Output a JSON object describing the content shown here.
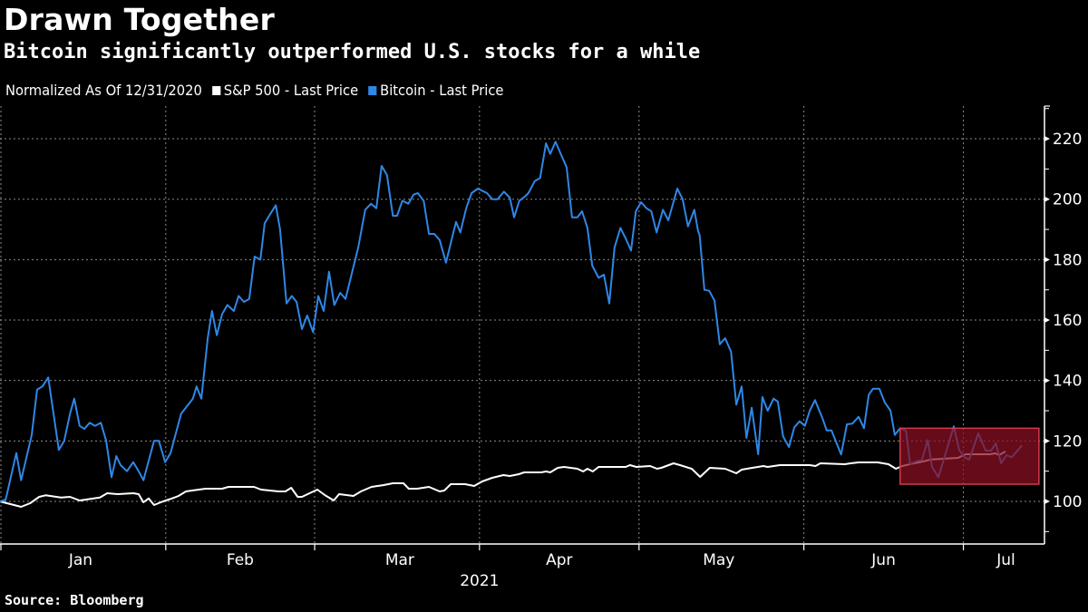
{
  "title": "Drawn Together",
  "subtitle": "Bitcoin significantly outperformed U.S. stocks for a while",
  "legend": {
    "note": "Normalized As Of 12/31/2020",
    "items": [
      {
        "label": "S&P 500 - Last Price",
        "color": "#ffffff"
      },
      {
        "label": "Bitcoin - Last Price",
        "color": "#2f87e6"
      }
    ]
  },
  "source": "Source: Bloomberg",
  "colors": {
    "background": "#000000",
    "sp500": "#ffffff",
    "bitcoin": "#2f87e6",
    "highlight_fill": "#8c0f22",
    "highlight_border": "#d33a4e",
    "grid": "#8a8a8a"
  },
  "chart_data": {
    "type": "line",
    "title": "Drawn Together",
    "subtitle": "Bitcoin significantly outperformed U.S. stocks for a while",
    "xlabel": "2021",
    "ylabel": "",
    "x_unit": "day of year 2021",
    "xlim": [
      0,
      196
    ],
    "ylim": [
      90,
      230
    ],
    "y_ticks": [
      100,
      120,
      140,
      160,
      180,
      200,
      220
    ],
    "y_minor_ticks": [
      90,
      110,
      130,
      150,
      170,
      190,
      210,
      230
    ],
    "x_tick_labels": [
      "Jan",
      "Feb",
      "Mar",
      "Apr",
      "May",
      "Jun",
      "Jul"
    ],
    "x_tick_label_days": [
      16,
      46,
      76,
      106,
      136,
      167,
      190
    ],
    "x_month_boundaries": [
      1,
      32,
      60,
      91,
      121,
      152,
      182
    ],
    "year_label": "2021",
    "grid": true,
    "y_axis_side": "right",
    "legend_position": "top-left",
    "highlight": {
      "x_from": 170.1,
      "x_to": 196.2,
      "y_from": 105.7,
      "y_to": 124.2
    },
    "series": [
      {
        "name": "S&P 500 - Last Price",
        "color": "#ffffff",
        "points": [
          [
            0.8,
            100
          ],
          [
            4.8,
            98.2
          ],
          [
            6.5,
            99.4
          ],
          [
            8.2,
            101.5
          ],
          [
            9.4,
            102
          ],
          [
            12.3,
            101.3
          ],
          [
            14,
            101.5
          ],
          [
            15.8,
            100.3
          ],
          [
            19.6,
            101.3
          ],
          [
            21,
            102.7
          ],
          [
            23,
            102.4
          ],
          [
            25.9,
            102.7
          ],
          [
            26.9,
            102.4
          ],
          [
            27.8,
            99.7
          ],
          [
            28.8,
            101
          ],
          [
            29.8,
            98.8
          ],
          [
            31.5,
            100
          ],
          [
            33.2,
            101
          ],
          [
            34.4,
            101.8
          ],
          [
            35.8,
            103.3
          ],
          [
            37,
            103.6
          ],
          [
            39.5,
            104.2
          ],
          [
            42.6,
            104.2
          ],
          [
            43.8,
            104.8
          ],
          [
            48.6,
            104.8
          ],
          [
            49.9,
            103.9
          ],
          [
            53.2,
            103.3
          ],
          [
            54.5,
            103.3
          ],
          [
            55.6,
            104.5
          ],
          [
            56.8,
            101.5
          ],
          [
            57.6,
            101.5
          ],
          [
            60.5,
            103.9
          ],
          [
            61.9,
            102.1
          ],
          [
            63.6,
            100.3
          ],
          [
            64.6,
            102.4
          ],
          [
            67.3,
            101.8
          ],
          [
            68.7,
            103.3
          ],
          [
            70.7,
            104.8
          ],
          [
            73,
            105.4
          ],
          [
            74.7,
            106
          ],
          [
            76.7,
            106
          ],
          [
            77.7,
            104.2
          ],
          [
            79.3,
            104.2
          ],
          [
            81.5,
            104.8
          ],
          [
            83.5,
            103.3
          ],
          [
            84.4,
            103.6
          ],
          [
            85.6,
            105.7
          ],
          [
            88.3,
            105.7
          ],
          [
            90,
            105.1
          ],
          [
            91.5,
            106.6
          ],
          [
            93.4,
            107.8
          ],
          [
            95.5,
            108.7
          ],
          [
            96.7,
            108.4
          ],
          [
            98.4,
            109
          ],
          [
            99.4,
            109.6
          ],
          [
            102.6,
            109.6
          ],
          [
            103.5,
            109.9
          ],
          [
            104.3,
            109.6
          ],
          [
            105.7,
            111.1
          ],
          [
            106.9,
            111.4
          ],
          [
            109.4,
            110.8
          ],
          [
            110.5,
            109.9
          ],
          [
            111.3,
            110.8
          ],
          [
            112.3,
            109.9
          ],
          [
            113.4,
            111.4
          ],
          [
            118.5,
            111.4
          ],
          [
            119.3,
            112
          ],
          [
            120.5,
            111.4
          ],
          [
            123.1,
            111.7
          ],
          [
            124.4,
            110.8
          ],
          [
            125.2,
            111.1
          ],
          [
            127.5,
            112.6
          ],
          [
            128.7,
            112
          ],
          [
            130.9,
            110.8
          ],
          [
            132.5,
            108.1
          ],
          [
            134.3,
            111.1
          ],
          [
            137.2,
            110.8
          ],
          [
            139.3,
            109.3
          ],
          [
            140.3,
            110.5
          ],
          [
            142.3,
            111.1
          ],
          [
            144.4,
            111.7
          ],
          [
            145.2,
            111.4
          ],
          [
            147.5,
            112
          ],
          [
            153.1,
            112
          ],
          [
            154.2,
            111.7
          ],
          [
            155.1,
            112.6
          ],
          [
            159.7,
            112.3
          ],
          [
            160.8,
            112.6
          ],
          [
            162.3,
            112.9
          ],
          [
            165.9,
            112.9
          ],
          [
            167.9,
            112.3
          ],
          [
            169.3,
            110.8
          ],
          [
            170.5,
            111.7
          ],
          [
            172.2,
            112.4
          ],
          [
            173.9,
            113
          ],
          [
            176,
            113.9
          ],
          [
            178.2,
            114.1
          ],
          [
            181,
            114.4
          ],
          [
            182.4,
            115.6
          ],
          [
            183.8,
            115.6
          ],
          [
            187,
            115.6
          ],
          [
            188,
            115.9
          ],
          [
            188.7,
            115.3
          ],
          [
            189.9,
            116.5
          ]
        ]
      },
      {
        "name": "Bitcoin - Last Price",
        "color": "#2f87e6",
        "points": [
          [
            0.8,
            100
          ],
          [
            1.9,
            100.6
          ],
          [
            3.9,
            116
          ],
          [
            4.8,
            107
          ],
          [
            6.8,
            122
          ],
          [
            7.8,
            137
          ],
          [
            8.8,
            138
          ],
          [
            9.9,
            141
          ],
          [
            11.9,
            117
          ],
          [
            12.9,
            120
          ],
          [
            14,
            129
          ],
          [
            14.8,
            134
          ],
          [
            15.8,
            125
          ],
          [
            16.7,
            124
          ],
          [
            17.7,
            126
          ],
          [
            18.7,
            125
          ],
          [
            19.8,
            126
          ],
          [
            20.8,
            120
          ],
          [
            21.8,
            108
          ],
          [
            22.7,
            115
          ],
          [
            23.5,
            112
          ],
          [
            24.7,
            110
          ],
          [
            25.9,
            113
          ],
          [
            26.9,
            110
          ],
          [
            27.8,
            107
          ],
          [
            29.8,
            120
          ],
          [
            30.7,
            120
          ],
          [
            31.9,
            113
          ],
          [
            32.9,
            116
          ],
          [
            34.9,
            129
          ],
          [
            37.1,
            134
          ],
          [
            37.8,
            138
          ],
          [
            38.7,
            134
          ],
          [
            39.9,
            154
          ],
          [
            40.7,
            163
          ],
          [
            41.6,
            155
          ],
          [
            42.6,
            162
          ],
          [
            43.6,
            165
          ],
          [
            44.8,
            163
          ],
          [
            45.7,
            168
          ],
          [
            46.7,
            166
          ],
          [
            47.7,
            167
          ],
          [
            48.7,
            181
          ],
          [
            49.8,
            180
          ],
          [
            50.6,
            192
          ],
          [
            51.6,
            195
          ],
          [
            52.7,
            198
          ],
          [
            53.5,
            190
          ],
          [
            54.7,
            165.5
          ],
          [
            55.7,
            168
          ],
          [
            56.6,
            166
          ],
          [
            57.6,
            157
          ],
          [
            58.6,
            161.5
          ],
          [
            59.7,
            156
          ],
          [
            60.7,
            168
          ],
          [
            61.7,
            163
          ],
          [
            62.7,
            176
          ],
          [
            63.7,
            165
          ],
          [
            64.8,
            169
          ],
          [
            65.8,
            167
          ],
          [
            67.2,
            177
          ],
          [
            68.2,
            184
          ],
          [
            69.5,
            196.5
          ],
          [
            70.6,
            198.5
          ],
          [
            71.6,
            197
          ],
          [
            72.6,
            211
          ],
          [
            73.6,
            208
          ],
          [
            74.7,
            194.5
          ],
          [
            75.5,
            194.5
          ],
          [
            76.5,
            199.5
          ],
          [
            77.6,
            198.5
          ],
          [
            78.6,
            201.5
          ],
          [
            79.4,
            202
          ],
          [
            80.5,
            199.5
          ],
          [
            81.5,
            188.5
          ],
          [
            82.5,
            188.5
          ],
          [
            83.5,
            186.5
          ],
          [
            84.7,
            179
          ],
          [
            85.6,
            185.5
          ],
          [
            86.6,
            192.5
          ],
          [
            87.4,
            189
          ],
          [
            88.5,
            197
          ],
          [
            89.5,
            202
          ],
          [
            90.7,
            203.5
          ],
          [
            92.4,
            202
          ],
          [
            93.4,
            200
          ],
          [
            94.4,
            200
          ],
          [
            95.6,
            202.5
          ],
          [
            96.7,
            200.5
          ],
          [
            97.5,
            194
          ],
          [
            98.5,
            199.5
          ],
          [
            99.6,
            201
          ],
          [
            100.2,
            202
          ],
          [
            101.4,
            206
          ],
          [
            102.4,
            207
          ],
          [
            103.5,
            218.5
          ],
          [
            104.3,
            215
          ],
          [
            105.3,
            219
          ],
          [
            106.4,
            214.5
          ],
          [
            107.4,
            210.5
          ],
          [
            108.4,
            194
          ],
          [
            109.4,
            194
          ],
          [
            110.3,
            196
          ],
          [
            111.3,
            190.5
          ],
          [
            112.2,
            178
          ],
          [
            113.4,
            174
          ],
          [
            114.4,
            175
          ],
          [
            115.4,
            165.5
          ],
          [
            116.4,
            184
          ],
          [
            117.5,
            190.5
          ],
          [
            118.5,
            187
          ],
          [
            119.5,
            183
          ],
          [
            120.4,
            196
          ],
          [
            121.4,
            199
          ],
          [
            122.4,
            197
          ],
          [
            123.3,
            196
          ],
          [
            124.3,
            189
          ],
          [
            125.5,
            196.5
          ],
          [
            126.5,
            193
          ],
          [
            128.2,
            203.5
          ],
          [
            129.2,
            200
          ],
          [
            130.2,
            191
          ],
          [
            131.4,
            196.5
          ],
          [
            132.1,
            189.5
          ],
          [
            132.4,
            188
          ],
          [
            133.3,
            170
          ],
          [
            134.2,
            169.7
          ],
          [
            135.2,
            166.4
          ],
          [
            136.2,
            152
          ],
          [
            137.2,
            154
          ],
          [
            138.3,
            149.5
          ],
          [
            139.3,
            132
          ],
          [
            140.3,
            138
          ],
          [
            141.2,
            121
          ],
          [
            142.2,
            131
          ],
          [
            143.4,
            115.6
          ],
          [
            144.2,
            134.5
          ],
          [
            145.2,
            130
          ],
          [
            146.3,
            134
          ],
          [
            147.1,
            133
          ],
          [
            148.1,
            121.5
          ],
          [
            149.2,
            118
          ],
          [
            150.2,
            124.5
          ],
          [
            151.2,
            126.5
          ],
          [
            152.2,
            125
          ],
          [
            153.1,
            130
          ],
          [
            154.1,
            133.5
          ],
          [
            155.5,
            127.5
          ],
          [
            156.3,
            123.5
          ],
          [
            157.2,
            123.5
          ],
          [
            159,
            115.5
          ],
          [
            160.1,
            125.5
          ],
          [
            161.1,
            125.7
          ],
          [
            162.3,
            128
          ],
          [
            163.3,
            124.2
          ],
          [
            164.2,
            135.3
          ],
          [
            165,
            137.3
          ],
          [
            166.2,
            137.3
          ],
          [
            167.2,
            132.8
          ],
          [
            168.3,
            130
          ],
          [
            169.1,
            122
          ],
          [
            170.1,
            124.2
          ],
          [
            171.2,
            123.4
          ],
          [
            172,
            112.4
          ],
          [
            173.2,
            113.3
          ],
          [
            174.2,
            113.7
          ],
          [
            175.3,
            120.3
          ],
          [
            176.1,
            111.4
          ],
          [
            177.3,
            108
          ],
          [
            180.2,
            124.8
          ],
          [
            181.2,
            117
          ],
          [
            182.2,
            114.6
          ],
          [
            183.1,
            113.8
          ],
          [
            184.8,
            122.5
          ],
          [
            186.2,
            116.8
          ],
          [
            187.2,
            116.8
          ],
          [
            188.1,
            119.2
          ],
          [
            189.1,
            112.6
          ],
          [
            190.1,
            115.3
          ],
          [
            191.1,
            114.6
          ],
          [
            193,
            118.5
          ]
        ]
      }
    ]
  }
}
